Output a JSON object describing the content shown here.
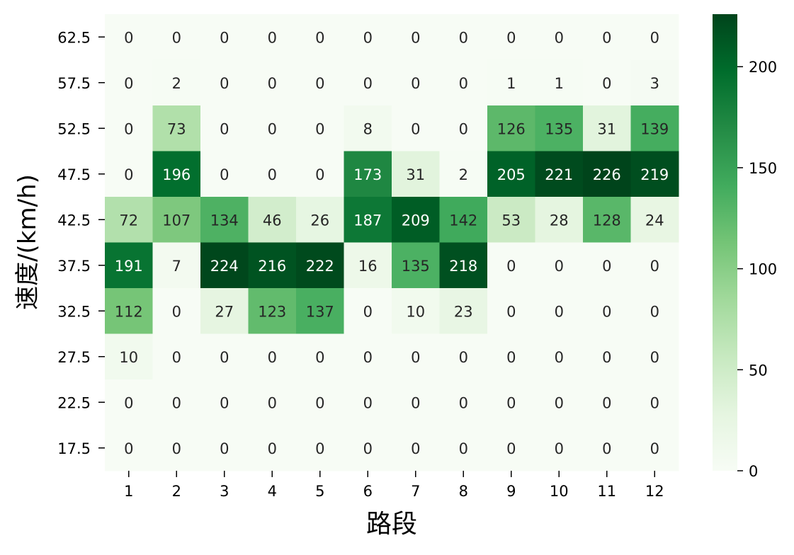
{
  "chart_data": {
    "type": "heatmap",
    "title": "",
    "xlabel": "路段",
    "ylabel": "速度/(km/h)",
    "x_categories": [
      "1",
      "2",
      "3",
      "4",
      "5",
      "6",
      "7",
      "8",
      "9",
      "10",
      "11",
      "12"
    ],
    "y_categories": [
      "62.5",
      "57.5",
      "52.5",
      "47.5",
      "42.5",
      "37.5",
      "32.5",
      "27.5",
      "22.5",
      "17.5"
    ],
    "values": [
      [
        0,
        0,
        0,
        0,
        0,
        0,
        0,
        0,
        0,
        0,
        0,
        0
      ],
      [
        0,
        2,
        0,
        0,
        0,
        0,
        0,
        0,
        1,
        1,
        0,
        3
      ],
      [
        0,
        73,
        0,
        0,
        0,
        8,
        0,
        0,
        126,
        135,
        31,
        139
      ],
      [
        0,
        196,
        0,
        0,
        0,
        173,
        31,
        2,
        205,
        221,
        226,
        219
      ],
      [
        72,
        107,
        134,
        46,
        26,
        187,
        209,
        142,
        53,
        28,
        128,
        24
      ],
      [
        191,
        7,
        224,
        216,
        222,
        16,
        135,
        218,
        0,
        0,
        0,
        0
      ],
      [
        112,
        0,
        27,
        123,
        137,
        0,
        10,
        23,
        0,
        0,
        0,
        0
      ],
      [
        10,
        0,
        0,
        0,
        0,
        0,
        0,
        0,
        0,
        0,
        0,
        0
      ],
      [
        0,
        0,
        0,
        0,
        0,
        0,
        0,
        0,
        0,
        0,
        0,
        0
      ],
      [
        0,
        0,
        0,
        0,
        0,
        0,
        0,
        0,
        0,
        0,
        0,
        0
      ]
    ],
    "colorbar": {
      "min": 0,
      "max": 226,
      "ticks": [
        0,
        50,
        100,
        150,
        200
      ]
    },
    "colormap": "Greens",
    "colors": {
      "low": "#f7fcf5",
      "high": "#00441b",
      "text_dark": "#262626",
      "text_light": "#ffffff"
    },
    "grid": false
  }
}
